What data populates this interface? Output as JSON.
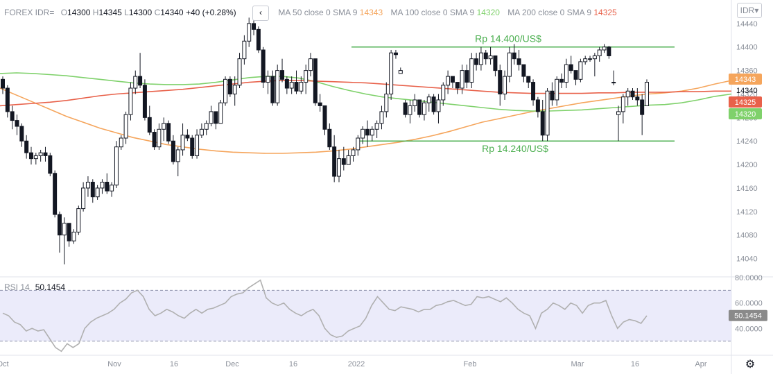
{
  "legend": {
    "symbol": "FOREX IDR=",
    "o_label": "O",
    "o_value": "14300",
    "h_label": "H",
    "h_value": "14345",
    "l_label": "L",
    "l_value": "14300",
    "c_label": "C",
    "c_value": "14340",
    "change": "+40 (+0.28%)",
    "collapse_icon": "chevron-left-icon",
    "ma50_label": "MA 50 close 0 SMA 9",
    "ma50_value": "14343",
    "ma100_label": "MA 100 close 0 SMA 9",
    "ma100_value": "14320",
    "ma200_label": "MA 200 close 0 SMA 9",
    "ma200_value": "14325"
  },
  "currency_button": "IDR",
  "currency_icon": "chevron-down-icon",
  "settings_icon": "gear-icon",
  "rsi": {
    "label": "RSI 14",
    "value": "50.1454"
  },
  "colors": {
    "ma50": "#f5a55c",
    "ma100": "#7fd16b",
    "ma200": "#e8614a",
    "channel": "#4caf50",
    "rsi_line": "#b0b0b0",
    "rsi_band": "#ebebfa",
    "candle": "#131722"
  },
  "chart_data": [
    {
      "type": "candlestick",
      "symbol": "FOREX IDR=",
      "ylim": [
        14010,
        14480
      ],
      "y_ticks": [
        14440,
        14400,
        14360,
        14320,
        14280,
        14240,
        14200,
        14160,
        14120,
        14080,
        14040
      ],
      "x_ticks": [
        "Oct",
        "Nov",
        "16",
        "Dec",
        "16",
        "2022",
        "Feb",
        "Mar",
        "16",
        "Apr"
      ],
      "price_labels": [
        {
          "value": 14343,
          "text": "14343",
          "color": "#f5a55c"
        },
        {
          "value": 14340,
          "text": "14340",
          "color": "none"
        },
        {
          "value": 14325,
          "text": "14325",
          "color": "#e8614a"
        },
        {
          "value": 14320,
          "text": "14320",
          "color": "#7fd16b"
        }
      ],
      "levels": [
        {
          "value": 14400,
          "label": "Rp 14.400/US$"
        },
        {
          "value": 14240,
          "label": "Rp 14.240/US$"
        }
      ],
      "ohlc": [
        [
          14345,
          14350,
          14320,
          14330
        ],
        [
          14330,
          14335,
          14280,
          14290
        ],
        [
          14290,
          14300,
          14260,
          14275
        ],
        [
          14275,
          14285,
          14250,
          14265
        ],
        [
          14265,
          14270,
          14230,
          14240
        ],
        [
          14240,
          14250,
          14210,
          14220
        ],
        [
          14220,
          14230,
          14200,
          14210
        ],
        [
          14210,
          14220,
          14200,
          14215
        ],
        [
          14215,
          14225,
          14205,
          14220
        ],
        [
          14220,
          14230,
          14205,
          14215
        ],
        [
          14215,
          14220,
          14180,
          14185
        ],
        [
          14185,
          14190,
          14110,
          14115
        ],
        [
          14115,
          14120,
          14050,
          14080
        ],
        [
          14080,
          14110,
          14030,
          14100
        ],
        [
          14100,
          14100,
          14060,
          14070
        ],
        [
          14070,
          14090,
          14065,
          14085
        ],
        [
          14085,
          14130,
          14080,
          14125
        ],
        [
          14125,
          14170,
          14120,
          14160
        ],
        [
          14160,
          14180,
          14145,
          14170
        ],
        [
          14170,
          14175,
          14135,
          14145
        ],
        [
          14145,
          14165,
          14140,
          14160
        ],
        [
          14160,
          14175,
          14150,
          14170
        ],
        [
          14170,
          14185,
          14150,
          14155
        ],
        [
          14155,
          14170,
          14145,
          14165
        ],
        [
          14165,
          14240,
          14160,
          14230
        ],
        [
          14230,
          14250,
          14225,
          14245
        ],
        [
          14245,
          14290,
          14235,
          14285
        ],
        [
          14285,
          14340,
          14275,
          14330
        ],
        [
          14330,
          14360,
          14320,
          14350
        ],
        [
          14350,
          14390,
          14330,
          14335
        ],
        [
          14335,
          14345,
          14275,
          14280
        ],
        [
          14280,
          14300,
          14250,
          14255
        ],
        [
          14255,
          14260,
          14225,
          14230
        ],
        [
          14230,
          14270,
          14225,
          14260
        ],
        [
          14260,
          14280,
          14240,
          14270
        ],
        [
          14270,
          14275,
          14235,
          14240
        ],
        [
          14240,
          14250,
          14200,
          14205
        ],
        [
          14205,
          14230,
          14180,
          14225
        ],
        [
          14225,
          14270,
          14215,
          14250
        ],
        [
          14250,
          14260,
          14240,
          14245
        ],
        [
          14245,
          14250,
          14210,
          14215
        ],
        [
          14215,
          14260,
          14210,
          14250
        ],
        [
          14250,
          14270,
          14245,
          14260
        ],
        [
          14260,
          14275,
          14250,
          14270
        ],
        [
          14270,
          14300,
          14265,
          14290
        ],
        [
          14290,
          14290,
          14260,
          14270
        ],
        [
          14270,
          14310,
          14270,
          14305
        ],
        [
          14305,
          14350,
          14300,
          14345
        ],
        [
          14345,
          14350,
          14315,
          14320
        ],
        [
          14320,
          14350,
          14300,
          14335
        ],
        [
          14335,
          14390,
          14330,
          14380
        ],
        [
          14380,
          14420,
          14370,
          14410
        ],
        [
          14410,
          14450,
          14400,
          14440
        ],
        [
          14440,
          14450,
          14420,
          14430
        ],
        [
          14430,
          14435,
          14390,
          14395
        ],
        [
          14395,
          14400,
          14330,
          14340
        ],
        [
          14340,
          14360,
          14320,
          14350
        ],
        [
          14350,
          14360,
          14300,
          14305
        ],
        [
          14305,
          14370,
          14300,
          14360
        ],
        [
          14360,
          14380,
          14340,
          14345
        ],
        [
          14345,
          14350,
          14320,
          14330
        ],
        [
          14330,
          14350,
          14320,
          14340
        ],
        [
          14340,
          14360,
          14320,
          14325
        ],
        [
          14325,
          14350,
          14320,
          14340
        ],
        [
          14340,
          14370,
          14320,
          14360
        ],
        [
          14360,
          14390,
          14350,
          14380
        ],
        [
          14380,
          14380,
          14300,
          14305
        ],
        [
          14305,
          14320,
          14290,
          14300
        ],
        [
          14300,
          14300,
          14250,
          14260
        ],
        [
          14260,
          14270,
          14225,
          14230
        ],
        [
          14230,
          14250,
          14170,
          14180
        ],
        [
          14180,
          14225,
          14170,
          14210
        ],
        [
          14210,
          14230,
          14190,
          14200
        ],
        [
          14200,
          14225,
          14200,
          14215
        ],
        [
          14215,
          14230,
          14205,
          14225
        ],
        [
          14225,
          14250,
          14215,
          14245
        ],
        [
          14245,
          14265,
          14235,
          14260
        ],
        [
          14260,
          14275,
          14230,
          14250
        ],
        [
          14250,
          14265,
          14240,
          14260
        ],
        [
          14260,
          14275,
          14245,
          14270
        ],
        [
          14270,
          14300,
          14260,
          14290
        ],
        [
          14290,
          14340,
          14280,
          14320
        ],
        [
          14320,
          14395,
          14310,
          14390
        ],
        [
          14390,
          14395,
          14380,
          14387
        ],
        [
          14355,
          14365,
          14355,
          14360
        ],
        [
          14305,
          14310,
          14280,
          14285
        ],
        [
          14285,
          14310,
          14270,
          14300
        ],
        [
          14300,
          14320,
          14290,
          14310
        ],
        [
          14310,
          14310,
          14280,
          14285
        ],
        [
          14285,
          14310,
          14275,
          14305
        ],
        [
          14305,
          14320,
          14290,
          14315
        ],
        [
          14315,
          14320,
          14285,
          14290
        ],
        [
          14290,
          14320,
          14270,
          14310
        ],
        [
          14310,
          14340,
          14300,
          14335
        ],
        [
          14335,
          14360,
          14320,
          14350
        ],
        [
          14350,
          14350,
          14330,
          14340
        ],
        [
          14340,
          14340,
          14320,
          14330
        ],
        [
          14330,
          14370,
          14320,
          14360
        ],
        [
          14360,
          14370,
          14330,
          14340
        ],
        [
          14340,
          14390,
          14330,
          14380
        ],
        [
          14380,
          14390,
          14360,
          14370
        ],
        [
          14370,
          14400,
          14360,
          14390
        ],
        [
          14390,
          14395,
          14370,
          14380
        ],
        [
          14380,
          14400,
          14370,
          14385
        ],
        [
          14385,
          14385,
          14350,
          14360
        ],
        [
          14360,
          14370,
          14300,
          14320
        ],
        [
          14320,
          14360,
          14310,
          14350
        ],
        [
          14350,
          14400,
          14340,
          14390
        ],
        [
          14390,
          14405,
          14370,
          14380
        ],
        [
          14380,
          14395,
          14360,
          14370
        ],
        [
          14370,
          14370,
          14340,
          14350
        ],
        [
          14350,
          14350,
          14330,
          14340
        ],
        [
          14340,
          14345,
          14300,
          14310
        ],
        [
          14310,
          14315,
          14280,
          14290
        ],
        [
          14290,
          14310,
          14240,
          14250
        ],
        [
          14250,
          14330,
          14240,
          14325
        ],
        [
          14325,
          14340,
          14300,
          14310
        ],
        [
          14310,
          14350,
          14300,
          14345
        ],
        [
          14345,
          14355,
          14330,
          14340
        ],
        [
          14340,
          14380,
          14330,
          14370
        ],
        [
          14370,
          14385,
          14355,
          14360
        ],
        [
          14360,
          14360,
          14335,
          14345
        ],
        [
          14345,
          14380,
          14340,
          14375
        ],
        [
          14375,
          14385,
          14370,
          14380
        ],
        [
          14380,
          14385,
          14375,
          14380
        ],
        [
          14380,
          14390,
          14350,
          14385
        ],
        [
          14385,
          14400,
          14375,
          14395
        ],
        [
          14395,
          14405,
          14390,
          14400
        ],
        [
          14400,
          14402,
          14380,
          14385
        ],
        [
          14340,
          14360,
          14335,
          14340
        ],
        [
          14285,
          14300,
          14240,
          14290
        ],
        [
          14290,
          14320,
          14270,
          14315
        ],
        [
          14315,
          14330,
          14300,
          14325
        ],
        [
          14325,
          14330,
          14310,
          14315
        ],
        [
          14315,
          14330,
          14300,
          14310
        ],
        [
          14310,
          14320,
          14250,
          14285
        ],
        [
          14300,
          14345,
          14300,
          14340
        ]
      ],
      "series": [
        {
          "name": "MA 50 close 0 SMA 9",
          "color": "#f5a55c",
          "values": [
            14330,
            14318,
            14306,
            14294,
            14282,
            14272,
            14262,
            14254,
            14246,
            14240,
            14234,
            14230,
            14226,
            14223,
            14221,
            14220,
            14219,
            14219,
            14220,
            14221,
            14223,
            14226,
            14230,
            14234,
            14238,
            14243,
            14249,
            14256,
            14264,
            14272,
            14278,
            14284,
            14290,
            14295,
            14300,
            14305,
            14309,
            14313,
            14317,
            14320,
            14322,
            14325,
            14330,
            14337,
            14343
          ]
        },
        {
          "name": "MA 100 close 0 SMA 9",
          "color": "#7fd16b",
          "values": [
            14355,
            14356,
            14355,
            14353,
            14351,
            14348,
            14345,
            14342,
            14339,
            14337,
            14336,
            14336,
            14337,
            14340,
            14344,
            14348,
            14350,
            14350,
            14347,
            14341,
            14333,
            14326,
            14320,
            14315,
            14312,
            14309,
            14306,
            14303,
            14300,
            14297,
            14294,
            14292,
            14291,
            14291,
            14292,
            14293,
            14295,
            14297,
            14299,
            14301,
            14302,
            14305,
            14310,
            14316,
            14320
          ]
        },
        {
          "name": "MA 200 close 0 SMA 9",
          "color": "#e8614a",
          "values": [
            14300,
            14302,
            14304,
            14306,
            14309,
            14313,
            14317,
            14320,
            14322,
            14324,
            14326,
            14328,
            14331,
            14334,
            14337,
            14340,
            14342,
            14343,
            14343,
            14342,
            14341,
            14340,
            14339,
            14337,
            14335,
            14333,
            14331,
            14329,
            14327,
            14325,
            14323,
            14322,
            14321,
            14321,
            14321,
            14321,
            14322,
            14322,
            14323,
            14323,
            14323,
            14324,
            14324,
            14325,
            14325
          ]
        }
      ]
    },
    {
      "type": "line",
      "title": "RSI 14",
      "ylim": [
        20,
        80
      ],
      "y_ticks": [
        80,
        60,
        40
      ],
      "band": [
        30,
        70
      ],
      "last_value": 50.1454,
      "values": [
        52,
        50,
        45,
        43,
        38,
        40,
        38,
        39,
        32,
        25,
        22,
        28,
        25,
        28,
        40,
        45,
        48,
        50,
        52,
        55,
        60,
        63,
        68,
        70,
        65,
        55,
        50,
        52,
        55,
        53,
        50,
        48,
        52,
        55,
        52,
        55,
        56,
        58,
        60,
        65,
        67,
        68,
        72,
        75,
        78,
        64,
        60,
        58,
        60,
        55,
        52,
        50,
        53,
        55,
        50,
        40,
        35,
        33,
        34,
        38,
        40,
        42,
        48,
        58,
        65,
        60,
        55,
        54,
        57,
        56,
        55,
        53,
        55,
        55,
        58,
        59,
        61,
        62,
        60,
        58,
        59,
        65,
        64,
        65,
        63,
        61,
        64,
        60,
        55,
        52,
        50,
        40,
        52,
        55,
        60,
        58,
        55,
        60,
        58,
        52,
        58,
        60,
        60,
        62,
        50,
        40,
        45,
        47,
        46,
        44,
        50
      ]
    }
  ]
}
